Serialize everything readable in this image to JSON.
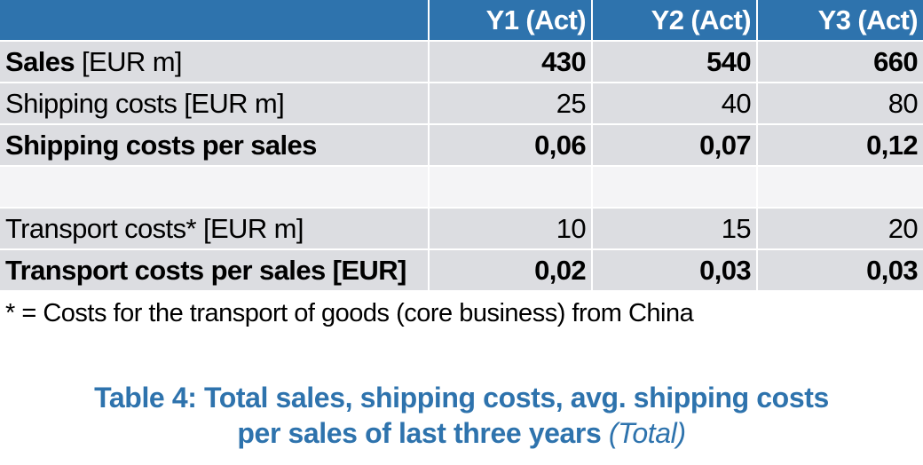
{
  "table": {
    "headers": [
      "",
      "Y1 (Act)",
      "Y2 (Act)",
      "Y3 (Act)"
    ],
    "rows": [
      {
        "label": "Sales",
        "unit": "[EUR m]",
        "values": [
          "430",
          "540",
          "660"
        ]
      },
      {
        "label": "Shipping costs [EUR m]",
        "values": [
          "25",
          "40",
          "80"
        ]
      },
      {
        "label": "Shipping costs per sales",
        "values": [
          "0,06",
          "0,07",
          "0,12"
        ]
      },
      {
        "label": "",
        "values": [
          "",
          "",
          ""
        ]
      },
      {
        "label": "Transport costs* [EUR m]",
        "values": [
          "10",
          "15",
          "20"
        ]
      },
      {
        "label": "Transport costs per sales [EUR]",
        "values": [
          "0,02",
          "0,03",
          "0,03"
        ]
      }
    ]
  },
  "footnote": "* = Costs for the transport of goods (core business) from China",
  "caption": {
    "line1": "Table 4: Total sales, shipping costs, avg. shipping costs",
    "line2": "per sales of last three years",
    "line2_italic": "(Total)"
  },
  "colors": {
    "header_bg": "#2e73ad",
    "row_bg": "#dcdde1",
    "caption_text": "#2e73ad"
  }
}
